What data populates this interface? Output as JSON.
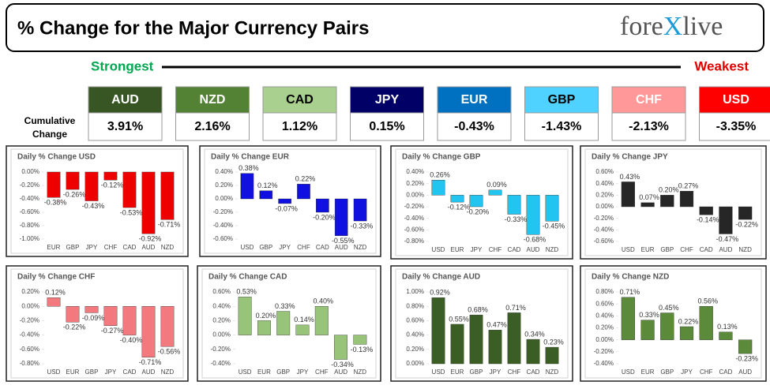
{
  "header": {
    "title": "% Change for the Major Currency Pairs",
    "brand_left": "fore",
    "brand_mark": "X",
    "brand_right": "live"
  },
  "strength": {
    "strongest": "Strongest",
    "weakest": "Weakest",
    "row_label": "Cumulative Change",
    "items": [
      {
        "code": "AUD",
        "change": "3.91%",
        "color": "#375623",
        "text_color": "#ffffff"
      },
      {
        "code": "NZD",
        "change": "2.16%",
        "color": "#548235",
        "text_color": "#ffffff"
      },
      {
        "code": "CAD",
        "change": "1.12%",
        "color": "#a9d08e",
        "text_color": "#000000"
      },
      {
        "code": "JPY",
        "change": "0.15%",
        "color": "#000066",
        "text_color": "#ffffff"
      },
      {
        "code": "EUR",
        "change": "-0.43%",
        "color": "#0070c0",
        "text_color": "#ffffff"
      },
      {
        "code": "GBP",
        "change": "-1.43%",
        "color": "#4fd2ff",
        "text_color": "#000000"
      },
      {
        "code": "CHF",
        "change": "-2.13%",
        "color": "#ff9999",
        "text_color": "#ffffff"
      },
      {
        "code": "USD",
        "change": "-3.35%",
        "color": "#ff0000",
        "text_color": "#ffffff"
      }
    ]
  },
  "chart_data": [
    {
      "type": "bar",
      "title": "Daily % Change USD",
      "color": "#ee0000",
      "categories": [
        "EUR",
        "GBP",
        "JPY",
        "CHF",
        "CAD",
        "AUD",
        "NZD"
      ],
      "values": [
        -0.38,
        -0.26,
        -0.43,
        -0.12,
        -0.53,
        -0.92,
        -0.71
      ],
      "value_labels": [
        "-0.38%",
        "-0.26%",
        "-0.43%",
        "-0.12%",
        "-0.53%",
        "-0.92%",
        "-0.71%"
      ],
      "ylim": [
        -1.0,
        0.0
      ],
      "yticks": [
        {
          "value": 0,
          "label": "0.00%"
        },
        {
          "value": -0.2,
          "label": "-0.20%"
        },
        {
          "value": -0.4,
          "label": "-0.40%"
        },
        {
          "value": -0.6,
          "label": "-0.60%"
        },
        {
          "value": -0.8,
          "label": "-0.80%"
        },
        {
          "value": -1.0,
          "label": "-1.00%"
        }
      ]
    },
    {
      "type": "bar",
      "title": "Daily % Change EUR",
      "color": "#1010e0",
      "categories": [
        "USD",
        "GBP",
        "JPY",
        "CHF",
        "CAD",
        "AUD",
        "NZD"
      ],
      "values": [
        0.38,
        0.12,
        -0.07,
        0.22,
        -0.2,
        -0.55,
        -0.33
      ],
      "value_labels": [
        "0.38%",
        "0.12%",
        "-0.07%",
        "0.22%",
        "-0.20%",
        "-0.55%",
        "-0.33%"
      ],
      "ylim": [
        -0.6,
        0.4
      ],
      "yticks": [
        {
          "value": 0.4,
          "label": "0.40%"
        },
        {
          "value": 0.2,
          "label": "0.20%"
        },
        {
          "value": 0,
          "label": "0.00%"
        },
        {
          "value": -0.2,
          "label": "-0.20%"
        },
        {
          "value": -0.4,
          "label": "-0.40%"
        },
        {
          "value": -0.6,
          "label": "-0.60%"
        }
      ]
    },
    {
      "type": "bar",
      "title": "Daily % Change GBP",
      "color": "#22c4f0",
      "categories": [
        "USD",
        "EUR",
        "JPY",
        "CHF",
        "CAD",
        "AUD",
        "NZD"
      ],
      "values": [
        0.26,
        -0.12,
        -0.2,
        0.09,
        -0.33,
        -0.68,
        -0.45
      ],
      "value_labels": [
        "0.26%",
        "-0.12%",
        "-0.20%",
        "0.09%",
        "-0.33%",
        "-0.68%",
        "-0.45%"
      ],
      "ylim": [
        -0.8,
        0.4
      ],
      "yticks": [
        {
          "value": 0.4,
          "label": "0.40%"
        },
        {
          "value": 0.2,
          "label": "0.20%"
        },
        {
          "value": 0,
          "label": "0.00%"
        },
        {
          "value": -0.2,
          "label": "-0.20%"
        },
        {
          "value": -0.4,
          "label": "-0.40%"
        },
        {
          "value": -0.6,
          "label": "-0.60%"
        },
        {
          "value": -0.8,
          "label": "-0.80%"
        }
      ]
    },
    {
      "type": "bar",
      "title": "Daily % Change JPY",
      "color": "#262626",
      "categories": [
        "USD",
        "EUR",
        "GBP",
        "CHF",
        "CAD",
        "AUD",
        "NZD"
      ],
      "values": [
        0.43,
        0.07,
        0.2,
        0.27,
        -0.14,
        -0.47,
        -0.22
      ],
      "value_labels": [
        "0.43%",
        "0.07%",
        "0.20%",
        "0.27%",
        "-0.14%",
        "-0.47%",
        "-0.22%"
      ],
      "ylim": [
        -0.6,
        0.6
      ],
      "yticks": [
        {
          "value": 0.6,
          "label": "0.60%"
        },
        {
          "value": 0.4,
          "label": "0.40%"
        },
        {
          "value": 0.2,
          "label": "0.20%"
        },
        {
          "value": 0,
          "label": "0.00%"
        },
        {
          "value": -0.2,
          "label": "-0.20%"
        },
        {
          "value": -0.4,
          "label": "-0.40%"
        },
        {
          "value": -0.6,
          "label": "-0.60%"
        }
      ]
    },
    {
      "type": "bar",
      "title": "Daily % Change CHF",
      "color": "#f27a7e",
      "categories": [
        "USD",
        "EUR",
        "GBP",
        "JPY",
        "CAD",
        "AUD",
        "NZD"
      ],
      "values": [
        0.12,
        -0.22,
        -0.09,
        -0.27,
        -0.4,
        -0.71,
        -0.56
      ],
      "value_labels": [
        "0.12%",
        "-0.22%",
        "-0.09%",
        "-0.27%",
        "-0.40%",
        "-0.71%",
        "-0.56%"
      ],
      "ylim": [
        -0.8,
        0.2
      ],
      "yticks": [
        {
          "value": 0.2,
          "label": "0.20%"
        },
        {
          "value": 0,
          "label": "0.00%"
        },
        {
          "value": -0.2,
          "label": "-0.20%"
        },
        {
          "value": -0.4,
          "label": "-0.40%"
        },
        {
          "value": -0.6,
          "label": "-0.60%"
        },
        {
          "value": -0.8,
          "label": "-0.80%"
        }
      ]
    },
    {
      "type": "bar",
      "title": "Daily % Change CAD",
      "color": "#98c47a",
      "categories": [
        "USD",
        "EUR",
        "GBP",
        "JPY",
        "CHF",
        "AUD",
        "NZD"
      ],
      "values": [
        0.53,
        0.2,
        0.33,
        0.14,
        0.4,
        -0.34,
        -0.13
      ],
      "value_labels": [
        "0.53%",
        "0.20%",
        "0.33%",
        "0.14%",
        "0.40%",
        "-0.34%",
        "-0.13%"
      ],
      "ylim": [
        -0.4,
        0.6
      ],
      "yticks": [
        {
          "value": 0.6,
          "label": "0.60%"
        },
        {
          "value": 0.4,
          "label": "0.40%"
        },
        {
          "value": 0.2,
          "label": "0.20%"
        },
        {
          "value": 0,
          "label": "0.00%"
        },
        {
          "value": -0.2,
          "label": "-0.20%"
        },
        {
          "value": -0.4,
          "label": "-0.40%"
        }
      ]
    },
    {
      "type": "bar",
      "title": "Daily % Change AUD",
      "color": "#3b5e24",
      "categories": [
        "USD",
        "EUR",
        "GBP",
        "JPY",
        "CHF",
        "CAD",
        "NZD"
      ],
      "values": [
        0.92,
        0.55,
        0.68,
        0.47,
        0.71,
        0.34,
        0.23
      ],
      "value_labels": [
        "0.92%",
        "0.55%",
        "0.68%",
        "0.47%",
        "0.71%",
        "0.34%",
        "0.23%"
      ],
      "ylim": [
        0,
        1.0
      ],
      "yticks": [
        {
          "value": 1.0,
          "label": "1.00%"
        },
        {
          "value": 0.8,
          "label": "0.80%"
        },
        {
          "value": 0.6,
          "label": "0.60%"
        },
        {
          "value": 0.4,
          "label": "0.40%"
        },
        {
          "value": 0.2,
          "label": "0.20%"
        },
        {
          "value": 0,
          "label": "0.00%"
        }
      ]
    },
    {
      "type": "bar",
      "title": "Daily % Change NZD",
      "color": "#5a8a3a",
      "categories": [
        "USD",
        "EUR",
        "GBP",
        "JPY",
        "CHF",
        "CAD",
        "AUD"
      ],
      "values": [
        0.71,
        0.33,
        0.45,
        0.22,
        0.56,
        0.13,
        -0.23
      ],
      "value_labels": [
        "0.71%",
        "0.33%",
        "0.45%",
        "0.22%",
        "0.56%",
        "0.13%",
        "-0.23%"
      ],
      "ylim": [
        -0.4,
        0.8
      ],
      "yticks": [
        {
          "value": 0.8,
          "label": "0.80%"
        },
        {
          "value": 0.6,
          "label": "0.60%"
        },
        {
          "value": 0.4,
          "label": "0.40%"
        },
        {
          "value": 0.2,
          "label": "0.20%"
        },
        {
          "value": 0,
          "label": "0.00%"
        },
        {
          "value": -0.2,
          "label": "-0.20%"
        },
        {
          "value": -0.4,
          "label": "-0.40%"
        }
      ]
    }
  ]
}
